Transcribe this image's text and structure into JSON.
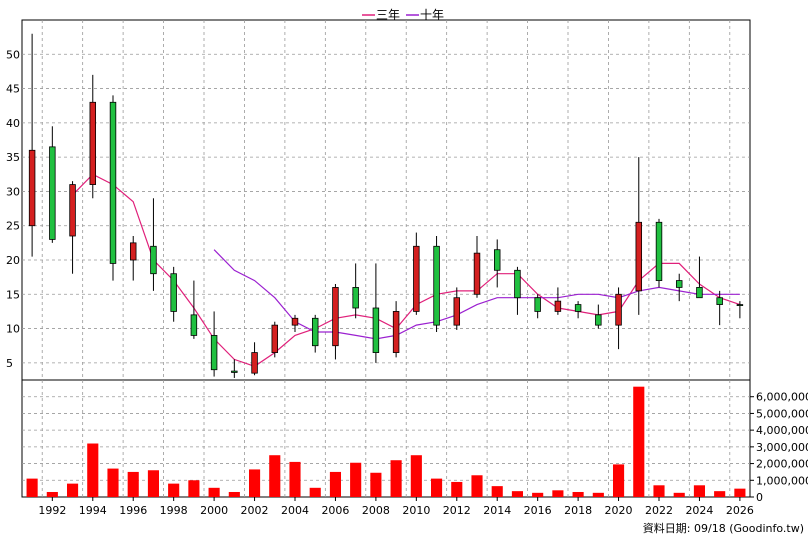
{
  "chart_data": [
    {
      "type": "candlestick",
      "legend": [
        {
          "name": "三年",
          "color": "#e0207a"
        },
        {
          "name": "十年",
          "color": "#9b20d0"
        }
      ],
      "legend_position": "top-center",
      "ylim": [
        2.5,
        55
      ],
      "yticks": [
        5,
        10,
        15,
        20,
        25,
        30,
        35,
        40,
        45,
        50
      ],
      "grid": true,
      "up_color": "#d42020",
      "down_color": "#20c040",
      "candles": [
        {
          "year": 1991,
          "open": 25,
          "high": 53,
          "low": 20.5,
          "close": 36
        },
        {
          "year": 1992,
          "open": 36.5,
          "high": 39.5,
          "low": 22.5,
          "close": 23
        },
        {
          "year": 1993,
          "open": 23.5,
          "high": 31.5,
          "low": 18,
          "close": 31
        },
        {
          "year": 1994,
          "open": 31,
          "high": 47,
          "low": 29,
          "close": 43
        },
        {
          "year": 1995,
          "open": 43,
          "high": 44,
          "low": 17,
          "close": 19.5
        },
        {
          "year": 1996,
          "open": 20,
          "high": 23.5,
          "low": 17,
          "close": 22.5
        },
        {
          "year": 1997,
          "open": 22,
          "high": 29,
          "low": 15.5,
          "close": 18
        },
        {
          "year": 1998,
          "open": 18,
          "high": 19,
          "low": 11,
          "close": 12.5
        },
        {
          "year": 1999,
          "open": 12,
          "high": 17,
          "low": 8.5,
          "close": 9
        },
        {
          "year": 2000,
          "open": 9,
          "high": 12.5,
          "low": 3,
          "close": 4
        },
        {
          "year": 2001,
          "open": 3.8,
          "high": 5.5,
          "low": 2.8,
          "close": 3.6
        },
        {
          "year": 2002,
          "open": 3.5,
          "high": 8,
          "low": 3.2,
          "close": 6.5
        },
        {
          "year": 2003,
          "open": 6.5,
          "high": 11,
          "low": 5.8,
          "close": 10.5
        },
        {
          "year": 2004,
          "open": 10.5,
          "high": 12,
          "low": 9.5,
          "close": 11.5
        },
        {
          "year": 2005,
          "open": 11.5,
          "high": 12,
          "low": 6.5,
          "close": 7.5
        },
        {
          "year": 2006,
          "open": 7.5,
          "high": 16.5,
          "low": 5.5,
          "close": 16
        },
        {
          "year": 2007,
          "open": 16,
          "high": 19.5,
          "low": 11.5,
          "close": 13
        },
        {
          "year": 2008,
          "open": 13,
          "high": 19.5,
          "low": 5,
          "close": 6.5
        },
        {
          "year": 2009,
          "open": 6.5,
          "high": 14,
          "low": 5.8,
          "close": 12.5
        },
        {
          "year": 2010,
          "open": 12.5,
          "high": 24,
          "low": 12,
          "close": 22
        },
        {
          "year": 2011,
          "open": 22,
          "high": 23.5,
          "low": 9.5,
          "close": 10.5
        },
        {
          "year": 2012,
          "open": 10.5,
          "high": 16,
          "low": 9.8,
          "close": 14.5
        },
        {
          "year": 2013,
          "open": 15,
          "high": 23.5,
          "low": 14.5,
          "close": 21
        },
        {
          "year": 2014,
          "open": 21.5,
          "high": 23,
          "low": 16,
          "close": 18.5
        },
        {
          "year": 2015,
          "open": 18.5,
          "high": 19,
          "low": 12,
          "close": 14.5
        },
        {
          "year": 2016,
          "open": 14.5,
          "high": 15,
          "low": 11.5,
          "close": 12.5
        },
        {
          "year": 2017,
          "open": 12.5,
          "high": 16,
          "low": 12,
          "close": 14
        },
        {
          "year": 2018,
          "open": 13.5,
          "high": 14,
          "low": 11.5,
          "close": 12.5
        },
        {
          "year": 2019,
          "open": 12,
          "high": 13.5,
          "low": 10,
          "close": 10.5
        },
        {
          "year": 2020,
          "open": 10.5,
          "high": 16,
          "low": 7,
          "close": 15
        },
        {
          "year": 2021,
          "open": 15.5,
          "high": 35,
          "low": 12,
          "close": 25.5
        },
        {
          "year": 2022,
          "open": 25.5,
          "high": 26,
          "low": 16,
          "close": 17
        },
        {
          "year": 2023,
          "open": 17,
          "high": 18,
          "low": 14,
          "close": 16
        },
        {
          "year": 2024,
          "open": 16,
          "high": 20.5,
          "low": 14.5,
          "close": 14.5
        },
        {
          "year": 2025,
          "open": 14.5,
          "high": 15.5,
          "low": 10.5,
          "close": 13.5
        },
        {
          "year": 2026,
          "open": 13.5,
          "high": 14,
          "low": 11.5,
          "close": 13.4
        }
      ],
      "ma_series": [
        {
          "name": "三年",
          "color": "#e0207a",
          "x": [
            1993,
            1994,
            1995,
            1996,
            1997,
            1998,
            1999,
            2000,
            2001,
            2002,
            2003,
            2004,
            2005,
            2006,
            2007,
            2008,
            2009,
            2010,
            2011,
            2012,
            2013,
            2014,
            2015,
            2016,
            2017,
            2018,
            2019,
            2020,
            2021,
            2022,
            2023,
            2024,
            2025,
            2026
          ],
          "values": [
            29.5,
            32.5,
            31,
            28.5,
            20,
            17,
            13,
            8.5,
            5.5,
            4.5,
            6.5,
            9,
            10,
            11.5,
            12,
            11.5,
            10,
            13.5,
            15,
            15.5,
            15.5,
            18,
            18,
            15,
            13,
            12.5,
            12,
            12.5,
            17,
            19.5,
            19.5,
            16.5,
            14.5,
            13.5
          ]
        },
        {
          "name": "十年",
          "color": "#9b20d0",
          "x": [
            2000,
            2001,
            2002,
            2003,
            2004,
            2005,
            2006,
            2007,
            2008,
            2009,
            2010,
            2011,
            2012,
            2013,
            2014,
            2015,
            2016,
            2017,
            2018,
            2019,
            2020,
            2021,
            2022,
            2023,
            2024,
            2025,
            2026
          ],
          "values": [
            21.5,
            18.5,
            17,
            14.5,
            11,
            9.5,
            9.5,
            9,
            8.5,
            9,
            10.5,
            11,
            12,
            13.5,
            14.5,
            14.5,
            14.5,
            14.5,
            15,
            15,
            14.5,
            15.5,
            16,
            15.5,
            15,
            15,
            15
          ]
        }
      ]
    },
    {
      "type": "bar",
      "ylim": [
        0,
        7000000
      ],
      "ytick_labels": [
        "0",
        "1,000,000",
        "2,000,000",
        "3,000,000",
        "4,000,000",
        "5,000,000",
        "6,000,000"
      ],
      "yticks": [
        0,
        1000000,
        2000000,
        3000000,
        4000000,
        5000000,
        6000000
      ],
      "bar_color": "#ff0000",
      "x": [
        1991,
        1992,
        1993,
        1994,
        1995,
        1996,
        1997,
        1998,
        1999,
        2000,
        2001,
        2002,
        2003,
        2004,
        2005,
        2006,
        2007,
        2008,
        2009,
        2010,
        2011,
        2012,
        2013,
        2014,
        2015,
        2016,
        2017,
        2018,
        2019,
        2020,
        2021,
        2022,
        2023,
        2024,
        2025,
        2026
      ],
      "values": [
        1100000,
        300000,
        800000,
        3200000,
        1700000,
        1500000,
        1600000,
        800000,
        1000000,
        550000,
        300000,
        1650000,
        2500000,
        2100000,
        550000,
        1500000,
        2050000,
        1450000,
        2200000,
        2500000,
        1100000,
        900000,
        1300000,
        650000,
        350000,
        250000,
        400000,
        300000,
        250000,
        1950000,
        6600000,
        700000,
        250000,
        700000,
        350000,
        500000
      ]
    }
  ],
  "x_axis": {
    "ticks": [
      "1992",
      "1994",
      "1996",
      "1998",
      "2000",
      "2002",
      "2004",
      "2006",
      "2008",
      "2010",
      "2012",
      "2014",
      "2016",
      "2018",
      "2020",
      "2022",
      "2024",
      "2026"
    ]
  },
  "footer": {
    "source": "資料日期: 09/18  (Goodinfo.tw)"
  }
}
